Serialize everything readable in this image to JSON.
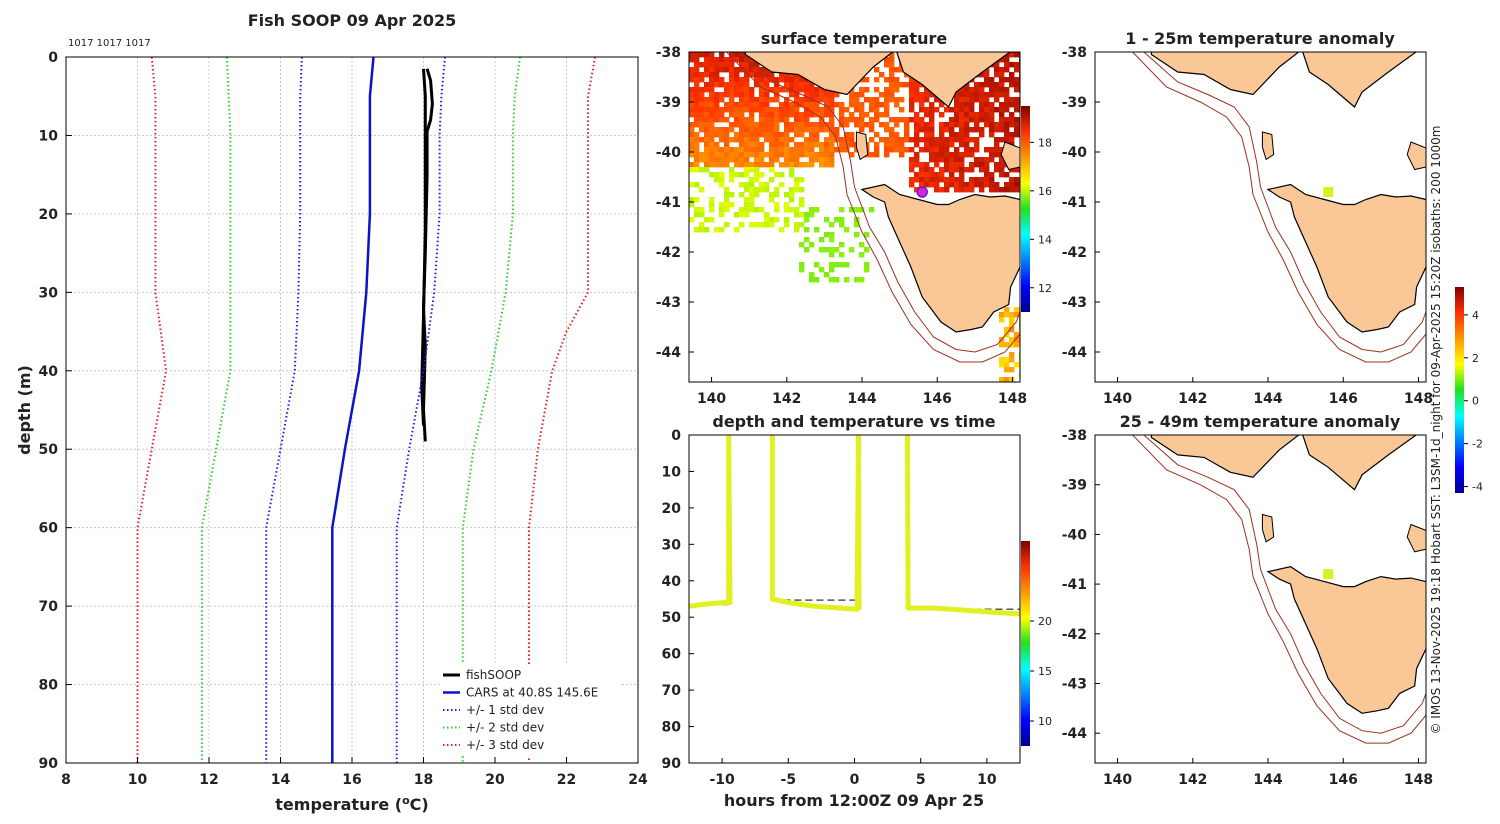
{
  "colors": {
    "land": "#fac896",
    "coast": "#000000",
    "isobath": "#a0301e",
    "grid": "#c8c8c8",
    "fishsoop": "#000000",
    "cars": "#0a14c8",
    "std1": "#1e1ee6",
    "std2": "#2bd12b",
    "std3": "#e61e1e",
    "track": "#e0f020",
    "dashed": "#555555",
    "marker": "#e020e0"
  },
  "side_note": "© IMOS 13-Nov-2025 19:18 Hobart SST: L3SM-1d_night for 09-Apr-2025 15:20Z isobaths: 200  1000m",
  "chart_data": [
    {
      "id": "profile",
      "type": "line",
      "title": "Fish SOOP 09 Apr 2025",
      "annotation": "1017 1017 1017",
      "xlabel": "temperature (°C)",
      "ylabel": "depth (m)",
      "xlim": [
        8,
        24
      ],
      "ylim": [
        0,
        90
      ],
      "y_reversed": true,
      "xticks": [
        "8",
        "10",
        "12",
        "14",
        "16",
        "18",
        "20",
        "22",
        "24"
      ],
      "yticks": [
        "0",
        "10",
        "20",
        "30",
        "40",
        "50",
        "60",
        "70",
        "80",
        "90"
      ],
      "legend_position": "bottom-right",
      "series": [
        {
          "name": "fishSOOP",
          "style": "solid",
          "color_key": "fishsoop",
          "width": 3,
          "points": [
            [
              18.1,
              1.5
            ],
            [
              18.2,
              3
            ],
            [
              18.25,
              6
            ],
            [
              18.2,
              8
            ],
            [
              18.1,
              9.5
            ],
            [
              18.1,
              15
            ],
            [
              18.05,
              25
            ],
            [
              18.0,
              32
            ],
            [
              18.05,
              37
            ],
            [
              18.0,
              45
            ],
            [
              18.05,
              49
            ]
          ]
        },
        {
          "name": "fishSOOP_b",
          "style": "solid",
          "color_key": "fishsoop",
          "width": 3,
          "hidden_legend": true,
          "points": [
            [
              18.0,
              1.5
            ],
            [
              18.05,
              5
            ],
            [
              18.05,
              12
            ],
            [
              18.05,
              22
            ],
            [
              18.0,
              33
            ],
            [
              17.95,
              42
            ],
            [
              18.0,
              47
            ]
          ]
        },
        {
          "name": "CARS at 40.8S 145.6E",
          "style": "solid",
          "color_key": "cars",
          "width": 2.5,
          "points": [
            [
              16.6,
              0
            ],
            [
              16.5,
              5
            ],
            [
              16.5,
              10
            ],
            [
              16.5,
              20
            ],
            [
              16.4,
              30
            ],
            [
              16.2,
              40
            ],
            [
              15.8,
              50
            ],
            [
              15.45,
              60
            ],
            [
              15.45,
              70
            ],
            [
              15.45,
              80
            ],
            [
              15.45,
              90
            ]
          ]
        },
        {
          "name": "+/- 1 std dev",
          "style": "dotted",
          "color_key": "std1",
          "width": 2,
          "points": [
            [
              14.6,
              0
            ],
            [
              14.55,
              5
            ],
            [
              14.55,
              10
            ],
            [
              14.55,
              20
            ],
            [
              14.5,
              30
            ],
            [
              14.4,
              40
            ],
            [
              14.0,
              50
            ],
            [
              13.6,
              60
            ],
            [
              13.6,
              70
            ],
            [
              13.6,
              80
            ],
            [
              13.6,
              90
            ]
          ]
        },
        {
          "name": "+/- 1 std dev b",
          "style": "dotted",
          "color_key": "std1",
          "width": 2,
          "hidden_legend": true,
          "points": [
            [
              18.6,
              0
            ],
            [
              18.5,
              5
            ],
            [
              18.45,
              10
            ],
            [
              18.45,
              20
            ],
            [
              18.3,
              30
            ],
            [
              18.0,
              40
            ],
            [
              17.6,
              50
            ],
            [
              17.25,
              60
            ],
            [
              17.25,
              70
            ],
            [
              17.25,
              80
            ],
            [
              17.25,
              90
            ]
          ]
        },
        {
          "name": "+/- 2 std dev",
          "style": "dotted",
          "color_key": "std2",
          "width": 2,
          "points": [
            [
              12.5,
              0
            ],
            [
              12.55,
              5
            ],
            [
              12.6,
              10
            ],
            [
              12.6,
              20
            ],
            [
              12.6,
              30
            ],
            [
              12.6,
              40
            ],
            [
              12.2,
              50
            ],
            [
              11.8,
              60
            ],
            [
              11.8,
              70
            ],
            [
              11.8,
              80
            ],
            [
              11.8,
              90
            ]
          ]
        },
        {
          "name": "+/- 2 std dev b",
          "style": "dotted",
          "color_key": "std2",
          "width": 2,
          "hidden_legend": true,
          "points": [
            [
              20.7,
              0
            ],
            [
              20.55,
              5
            ],
            [
              20.5,
              10
            ],
            [
              20.5,
              20
            ],
            [
              20.3,
              30
            ],
            [
              19.9,
              40
            ],
            [
              19.4,
              50
            ],
            [
              19.1,
              60
            ],
            [
              19.1,
              70
            ],
            [
              19.1,
              80
            ],
            [
              19.1,
              90
            ]
          ]
        },
        {
          "name": "+/- 3 std dev",
          "style": "dotted",
          "color_key": "std3",
          "width": 2,
          "points": [
            [
              10.4,
              0
            ],
            [
              10.5,
              5
            ],
            [
              10.5,
              10
            ],
            [
              10.5,
              20
            ],
            [
              10.5,
              30
            ],
            [
              10.8,
              40
            ],
            [
              10.4,
              50
            ],
            [
              10.0,
              60
            ],
            [
              10.0,
              70
            ],
            [
              10.0,
              80
            ],
            [
              10.0,
              90
            ]
          ]
        },
        {
          "name": "+/- 3 std dev b",
          "style": "dotted",
          "color_key": "std3",
          "width": 2,
          "hidden_legend": true,
          "points": [
            [
              22.8,
              0
            ],
            [
              22.6,
              5
            ],
            [
              22.6,
              10
            ],
            [
              22.6,
              20
            ],
            [
              22.6,
              30
            ],
            [
              22.0,
              35
            ],
            [
              21.6,
              40
            ],
            [
              21.2,
              50
            ],
            [
              20.95,
              60
            ],
            [
              20.95,
              70
            ],
            [
              20.95,
              80
            ],
            [
              20.95,
              90
            ]
          ]
        }
      ]
    },
    {
      "id": "sst_map",
      "type": "heatmap",
      "title": "surface temperature",
      "xlim": [
        139.4,
        148.2
      ],
      "ylim": [
        -44.6,
        -38
      ],
      "xticks": [
        "140",
        "142",
        "144",
        "146",
        "148"
      ],
      "yticks": [
        "-38",
        "-39",
        "-40",
        "-41",
        "-42",
        "-43",
        "-44"
      ],
      "colorbar": {
        "range": [
          11,
          19.5
        ],
        "ticks": [
          "12",
          "14",
          "16",
          "18"
        ],
        "tick_values": [
          12,
          14,
          16,
          18
        ]
      },
      "marker": {
        "lon": 145.6,
        "lat": -40.8
      }
    },
    {
      "id": "depth_time",
      "type": "line",
      "title": "depth and temperature vs time",
      "xlabel": "hours from 12:00Z 09 Apr 25",
      "xlim": [
        -12.5,
        12.5
      ],
      "ylim": [
        0,
        90
      ],
      "y_reversed": true,
      "xticks": [
        "-10",
        "-5",
        "0",
        "5",
        "10"
      ],
      "xtick_values": [
        -10,
        -5,
        0,
        5,
        10
      ],
      "yticks": [
        "0",
        "10",
        "20",
        "30",
        "40",
        "50",
        "60",
        "70",
        "80",
        "90"
      ],
      "colorbar": {
        "range": [
          7.5,
          28
        ],
        "ticks": [
          "10",
          "15",
          "20"
        ],
        "tick_values": [
          10,
          15,
          20
        ]
      },
      "track": [
        [
          [
            -12.5,
            47
          ],
          [
            -11.5,
            46.5
          ],
          [
            -10,
            46
          ],
          [
            -9.5,
            46
          ],
          [
            -9.5,
            0.5
          ],
          [
            -9.4,
            46
          ]
        ],
        [
          [
            -6.2,
            0.5
          ],
          [
            -6.2,
            45
          ],
          [
            -5,
            46
          ],
          [
            -3,
            47
          ],
          [
            -1,
            47.5
          ],
          [
            0.2,
            47.8
          ],
          [
            0.3,
            0.5
          ],
          [
            0.35,
            47.5
          ]
        ],
        [
          [
            4.0,
            0.5
          ],
          [
            4.05,
            47.5
          ],
          [
            6,
            47.5
          ],
          [
            8,
            48
          ],
          [
            10,
            48.5
          ],
          [
            12,
            49
          ],
          [
            12.5,
            49
          ]
        ]
      ],
      "dashed": [
        [
          [
            -12.5,
            46.5
          ],
          [
            -9.5,
            46.5
          ]
        ],
        [
          [
            -6.2,
            45.3
          ],
          [
            0.3,
            45.3
          ]
        ],
        [
          [
            4.0,
            47.8
          ],
          [
            12.5,
            47.8
          ]
        ]
      ]
    },
    {
      "id": "anom1",
      "type": "heatmap",
      "title": "1 - 25m temperature anomaly",
      "xlim": [
        139.4,
        148.2
      ],
      "ylim": [
        -44.6,
        -38
      ],
      "xticks": [
        "140",
        "142",
        "144",
        "146",
        "148"
      ],
      "yticks": [
        "-38",
        "-39",
        "-40",
        "-41",
        "-42",
        "-43",
        "-44"
      ],
      "marker": {
        "lon": 145.6,
        "lat": -40.8
      }
    },
    {
      "id": "anom2",
      "type": "heatmap",
      "title": "25 - 49m temperature anomaly",
      "xlim": [
        139.4,
        148.2
      ],
      "ylim": [
        -44.6,
        -38
      ],
      "xticks": [
        "140",
        "142",
        "144",
        "146",
        "148"
      ],
      "yticks": [
        "-38",
        "-39",
        "-40",
        "-41",
        "-42",
        "-43",
        "-44"
      ],
      "colorbar": {
        "range": [
          -4.3,
          5.3
        ],
        "ticks": [
          "-4",
          "-2",
          "0",
          "2",
          "4"
        ],
        "tick_values": [
          -4,
          -2,
          0,
          2,
          4
        ]
      },
      "marker": {
        "lon": 145.6,
        "lat": -40.8
      }
    }
  ]
}
